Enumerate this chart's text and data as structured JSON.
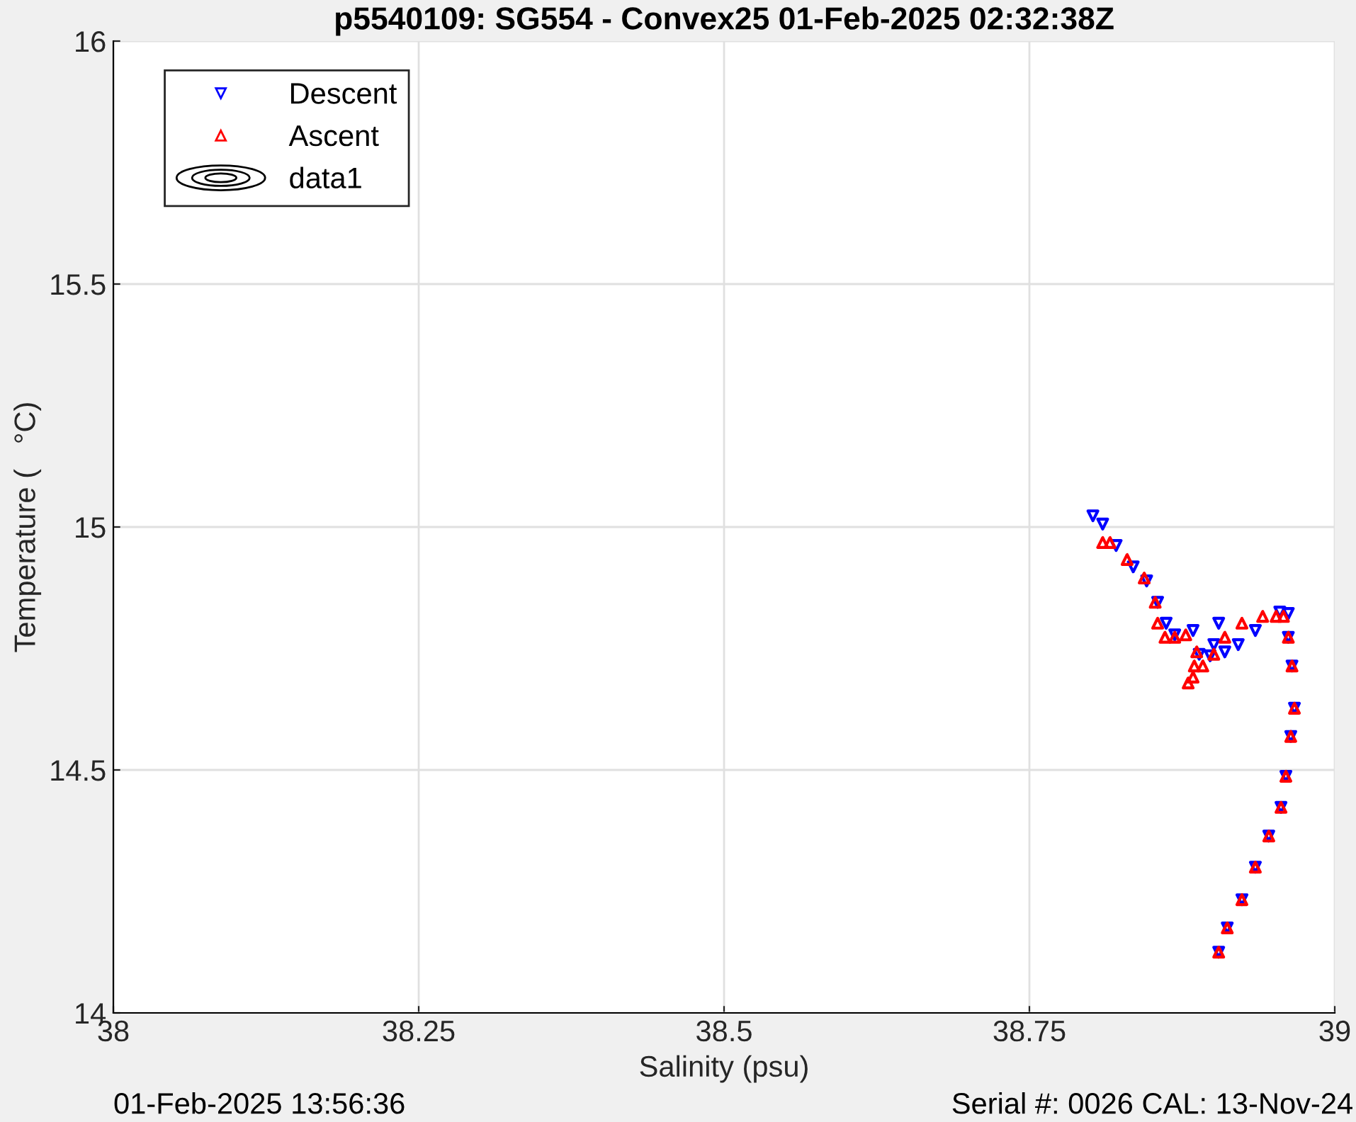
{
  "chart_data": {
    "type": "scatter",
    "title": "p5540109: SG554 - Convex25 01-Feb-2025 02:32:38Z",
    "xlabel": "Salinity (psu)",
    "ylabel": "Temperature (   °C)",
    "annotations": [
      "01-Feb-2025 13:56:36",
      "Serial #: 0026 CAL: 13-Nov-24"
    ],
    "xlim": [
      38,
      39
    ],
    "xticks": [
      38,
      38.25,
      38.5,
      38.75,
      39
    ],
    "ylim": [
      14,
      16
    ],
    "yticks": [
      14,
      14.5,
      15,
      15.5,
      16
    ],
    "grid": true,
    "legend": "top left",
    "series": [
      {
        "name": "Descent",
        "color": "#0000ff",
        "marker": "triangle_down",
        "x": [
          38.802,
          38.81,
          38.821,
          38.835,
          38.846,
          38.855,
          38.862,
          38.869,
          38.884,
          38.905,
          38.901,
          38.889,
          38.898,
          38.91,
          38.921,
          38.935,
          38.955,
          38.962,
          38.962,
          38.965,
          38.967,
          38.964,
          38.96,
          38.956,
          38.946,
          38.935,
          38.924,
          38.912,
          38.905
        ],
        "values": [
          15.023,
          15.006,
          14.962,
          14.918,
          14.889,
          14.845,
          14.802,
          14.778,
          14.787,
          14.802,
          14.758,
          14.738,
          14.735,
          14.743,
          14.758,
          14.787,
          14.825,
          14.822,
          14.773,
          14.714,
          14.627,
          14.569,
          14.487,
          14.423,
          14.364,
          14.3,
          14.233,
          14.175,
          14.125
        ]
      },
      {
        "name": "Ascent",
        "color": "#ff0000",
        "marker": "triangle",
        "x": [
          38.905,
          38.912,
          38.924,
          38.935,
          38.946,
          38.956,
          38.96,
          38.964,
          38.967,
          38.965,
          38.962,
          38.958,
          38.952,
          38.941,
          38.924,
          38.91,
          38.901,
          38.892,
          38.884,
          38.88,
          38.885,
          38.887,
          38.878,
          38.869,
          38.861,
          38.855,
          38.853,
          38.844,
          38.83,
          38.816,
          38.81
        ],
        "values": [
          14.125,
          14.175,
          14.233,
          14.3,
          14.364,
          14.423,
          14.487,
          14.569,
          14.627,
          14.714,
          14.773,
          14.816,
          14.816,
          14.816,
          14.802,
          14.773,
          14.738,
          14.714,
          14.691,
          14.679,
          14.714,
          14.743,
          14.778,
          14.773,
          14.773,
          14.802,
          14.845,
          14.895,
          14.933,
          14.968,
          14.968
        ]
      },
      {
        "name": "data1",
        "type": "other",
        "color": "#000000"
      }
    ]
  }
}
